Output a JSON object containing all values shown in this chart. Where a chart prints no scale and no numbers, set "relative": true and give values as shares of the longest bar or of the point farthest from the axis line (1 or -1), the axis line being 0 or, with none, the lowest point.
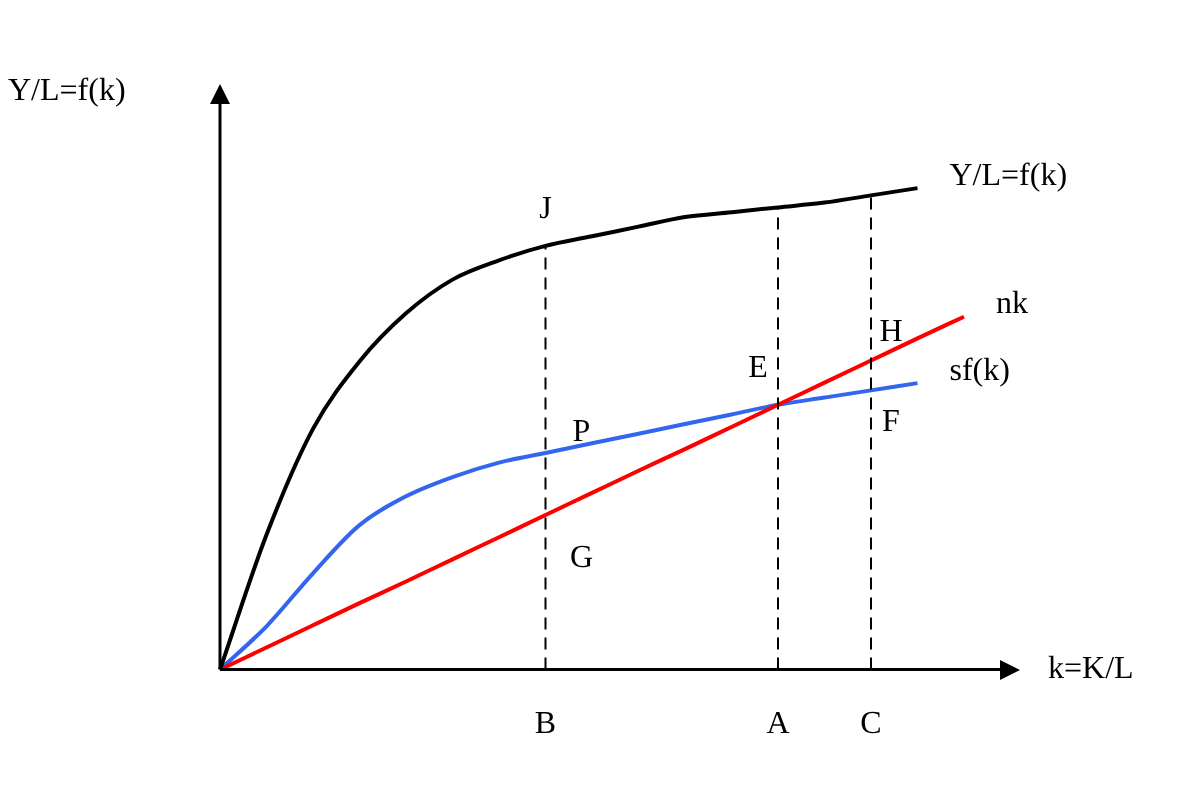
{
  "chart_data": {
    "type": "line",
    "relative": true,
    "ylabel": "Y/L=f(k)",
    "xlabel": "k=K/L",
    "categories": [
      null,
      null,
      null,
      null,
      null,
      null,
      null,
      "B",
      null,
      null,
      null,
      null,
      "A",
      null,
      "C",
      null,
      null
    ],
    "series": [
      {
        "name": "Y/L=f(k)",
        "color": "#000000",
        "values": [
          0,
          0.28,
          0.5,
          0.64,
          0.74,
          0.81,
          0.85,
          0.88,
          0.9,
          0.92,
          0.94,
          0.95,
          0.96,
          0.97,
          0.985,
          1.0,
          null
        ]
      },
      {
        "name": "nk",
        "color": "#ff0000",
        "values": [
          0,
          0.046,
          0.092,
          0.138,
          0.183,
          0.229,
          0.275,
          0.321,
          0.367,
          0.413,
          0.458,
          0.504,
          0.55,
          0.596,
          0.642,
          0.688,
          0.733
        ]
      },
      {
        "name": "sf(k)",
        "color": "#3366ee",
        "values": [
          0,
          0.09,
          0.2,
          0.3,
          0.36,
          0.4,
          0.43,
          0.45,
          0.47,
          0.49,
          0.51,
          0.53,
          0.55,
          0.565,
          0.58,
          0.595,
          null
        ]
      }
    ],
    "ref_lines": [
      {
        "axis": "x",
        "value": "B",
        "line_style": "dashed"
      },
      {
        "axis": "x",
        "value": "A",
        "line_style": "dashed"
      },
      {
        "axis": "x",
        "value": "C",
        "line_style": "dashed"
      }
    ],
    "annotations": [
      {
        "text": "J",
        "x": "B",
        "y": 0.88
      },
      {
        "text": "P",
        "x": "B",
        "y": 0.45
      },
      {
        "text": "G",
        "x": "B",
        "y": 0.321
      },
      {
        "text": "E",
        "x": "A",
        "y": 0.55
      },
      {
        "text": "H",
        "x": "C",
        "y": 0.642
      },
      {
        "text": "F",
        "x": "C",
        "y": 0.58
      }
    ],
    "grid": false,
    "legend": false,
    "marker": "none",
    "line_style": "solid"
  }
}
